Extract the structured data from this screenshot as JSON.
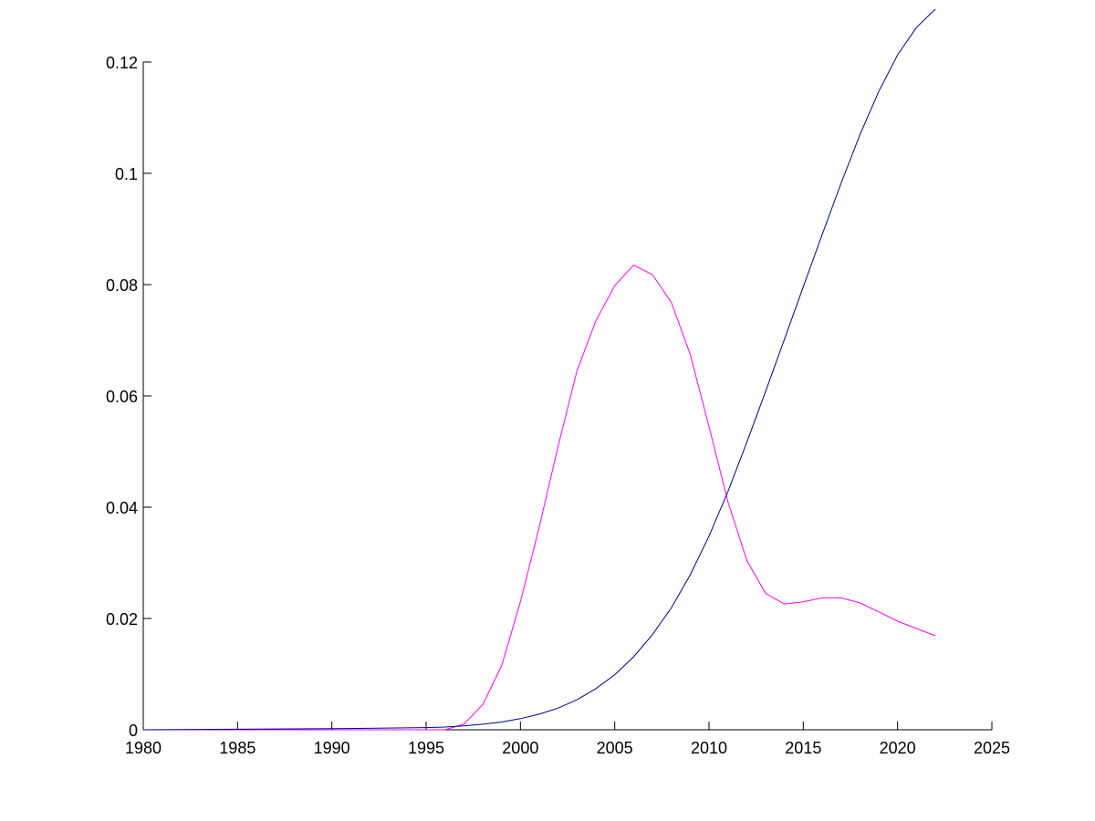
{
  "chart_data": {
    "type": "line",
    "title": "",
    "xlabel": "",
    "ylabel": "",
    "xlim": [
      1980,
      2025
    ],
    "ylim": [
      0,
      0.12
    ],
    "grid": false,
    "x_ticks": [
      "1980",
      "1985",
      "1990",
      "1995",
      "2000",
      "2005",
      "2010",
      "2015",
      "2020",
      "2025"
    ],
    "y_ticks": [
      "0",
      "0.02",
      "0.04",
      "0.06",
      "0.08",
      "0.1",
      "0.12"
    ],
    "series": [
      {
        "color": "#ff00ff",
        "x": [
          1980,
          1985,
          1990,
          1995,
          1996,
          1997,
          1998,
          1999,
          2000,
          2001,
          2002,
          2003,
          2004,
          2005,
          2006,
          2007,
          2008,
          2009,
          2010,
          2011,
          2012,
          2013,
          2014,
          2015,
          2016,
          2017,
          2018,
          2019,
          2020,
          2021,
          2022
        ],
        "values": [
          0,
          0,
          0,
          0,
          0,
          0.001,
          0.0045,
          0.0115,
          0.023,
          0.0365,
          0.051,
          0.0645,
          0.0735,
          0.0798,
          0.0835,
          0.0818,
          0.0768,
          0.0675,
          0.0545,
          0.041,
          0.0305,
          0.0245,
          0.0226,
          0.023,
          0.0237,
          0.0237,
          0.0228,
          0.0212,
          0.0195,
          0.0182,
          0.0169
        ]
      },
      {
        "color": "#00008b",
        "x": [
          1980,
          1985,
          1990,
          1995,
          1996,
          1997,
          1998,
          1999,
          2000,
          2001,
          2002,
          2003,
          2004,
          2005,
          2006,
          2007,
          2008,
          2009,
          2010,
          2011,
          2012,
          2013,
          2014,
          2015,
          2016,
          2017,
          2018,
          2019,
          2020,
          2021,
          2022
        ],
        "values": [
          0,
          0.0001,
          0.0002,
          0.0004,
          0.0005,
          0.0007,
          0.001,
          0.0014,
          0.002,
          0.0028,
          0.0039,
          0.0054,
          0.0074,
          0.0099,
          0.0131,
          0.0171,
          0.0219,
          0.0278,
          0.0348,
          0.0428,
          0.0516,
          0.0608,
          0.0702,
          0.0796,
          0.089,
          0.0982,
          0.1069,
          0.1147,
          0.1213,
          0.1262,
          0.1295
        ]
      }
    ]
  }
}
